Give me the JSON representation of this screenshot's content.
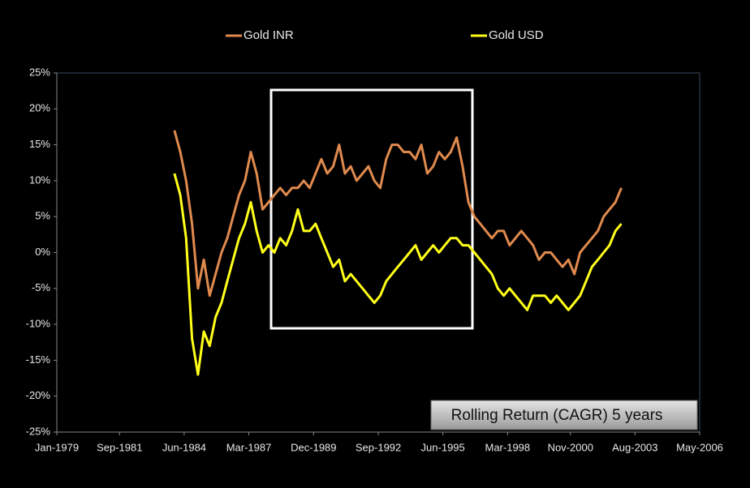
{
  "chart_data": {
    "type": "line",
    "annotation": "Rolling Return (CAGR) 5 years",
    "x": [
      "Jan-1984",
      "Apr-1984",
      "Jul-1984",
      "Oct-1984",
      "Jan-1985",
      "Apr-1985",
      "Jul-1985",
      "Oct-1985",
      "Jan-1986",
      "Apr-1986",
      "Jul-1986",
      "Oct-1986",
      "Jan-1987",
      "Apr-1987",
      "Jul-1987",
      "Oct-1987",
      "Jan-1988",
      "Apr-1988",
      "Jul-1988",
      "Oct-1988",
      "Jan-1989",
      "Apr-1989",
      "Jul-1989",
      "Oct-1989",
      "Jan-1990",
      "Apr-1990",
      "Jul-1990",
      "Oct-1990",
      "Jan-1991",
      "Apr-1991",
      "Jul-1991",
      "Oct-1991",
      "Jan-1992",
      "Apr-1992",
      "Jul-1992",
      "Oct-1992",
      "Jan-1993",
      "Apr-1993",
      "Jul-1993",
      "Oct-1993",
      "Jan-1994",
      "Apr-1994",
      "Jul-1994",
      "Oct-1994",
      "Jan-1995",
      "Apr-1995",
      "Jul-1995",
      "Oct-1995",
      "Jan-1996",
      "Apr-1996",
      "Jul-1996",
      "Oct-1996",
      "Jan-1997",
      "Apr-1997",
      "Jul-1997",
      "Oct-1997",
      "Jan-1998",
      "Apr-1998",
      "Jul-1998",
      "Oct-1998",
      "Jan-1999",
      "Apr-1999",
      "Jul-1999",
      "Oct-1999",
      "Jan-2000",
      "Apr-2000",
      "Jul-2000",
      "Oct-2000",
      "Jan-2001",
      "Apr-2001",
      "Jul-2001",
      "Oct-2001",
      "Jan-2002",
      "Apr-2002",
      "Jul-2002",
      "Oct-2002",
      "Jan-2003"
    ],
    "series": [
      {
        "name": "Gold INR",
        "color": "#e08a4e",
        "values": [
          17,
          14,
          10,
          4,
          -5,
          -1,
          -6,
          -3,
          0,
          2,
          5,
          8,
          10,
          14,
          11,
          6,
          7,
          8,
          9,
          8,
          9,
          9,
          10,
          9,
          11,
          13,
          11,
          12,
          15,
          11,
          12,
          10,
          11,
          12,
          10,
          9,
          13,
          15,
          15,
          14,
          14,
          13,
          15,
          11,
          12,
          14,
          13,
          14,
          16,
          12,
          7,
          5,
          4,
          3,
          2,
          3,
          3,
          1,
          2,
          3,
          2,
          1,
          -1,
          0,
          0,
          -1,
          -2,
          -1,
          -3,
          0,
          1,
          2,
          3,
          5,
          6,
          7,
          9
        ]
      },
      {
        "name": "Gold USD",
        "color": "#ffff1a",
        "values": [
          11,
          8,
          2,
          -12,
          -17,
          -11,
          -13,
          -9,
          -7,
          -4,
          -1,
          2,
          4,
          7,
          3,
          0,
          1,
          0,
          2,
          1,
          3,
          6,
          3,
          3,
          4,
          2,
          0,
          -2,
          -1,
          -4,
          -3,
          -4,
          -5,
          -6,
          -7,
          -6,
          -4,
          -3,
          -2,
          -1,
          0,
          1,
          -1,
          0,
          1,
          0,
          1,
          2,
          2,
          1,
          1,
          0,
          -1,
          -2,
          -3,
          -5,
          -6,
          -5,
          -6,
          -7,
          -8,
          -6,
          -6,
          -6,
          -7,
          -6,
          -7,
          -8,
          -7,
          -6,
          -4,
          -2,
          -1,
          0,
          1,
          3,
          4
        ]
      }
    ],
    "xlim": [
      "Jan-1979",
      "May-2006"
    ],
    "xticks": [
      "Jan-1979",
      "Sep-1981",
      "Jun-1984",
      "Mar-1987",
      "Dec-1989",
      "Sep-1992",
      "Jun-1995",
      "Mar-1998",
      "Nov-2000",
      "Aug-2003",
      "May-2006"
    ],
    "ylim": [
      -25,
      25
    ],
    "yticks": [
      {
        "value": -25,
        "label": "-25%"
      },
      {
        "value": -20,
        "label": "-20%"
      },
      {
        "value": -15,
        "label": "-15%"
      },
      {
        "value": -10,
        "label": "-10%"
      },
      {
        "value": -5,
        "label": "-5%"
      },
      {
        "value": 0,
        "label": "0%"
      },
      {
        "value": 5,
        "label": "5%"
      },
      {
        "value": 10,
        "label": "10%"
      },
      {
        "value": 15,
        "label": "15%"
      },
      {
        "value": 20,
        "label": "20%"
      },
      {
        "value": 25,
        "label": "25%"
      }
    ]
  }
}
